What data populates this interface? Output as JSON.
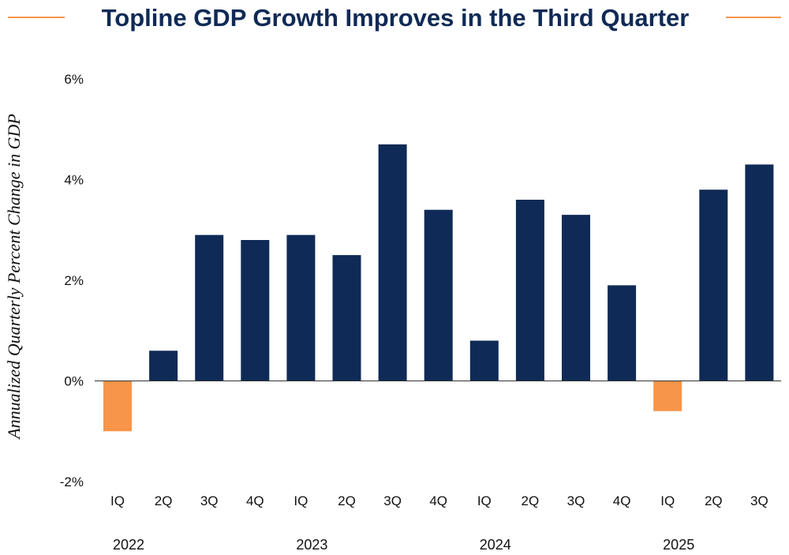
{
  "chart_data": {
    "type": "bar",
    "title": "Topline GDP Growth Improves in the Third Quarter",
    "ylabel": "Annualized Quarterly Percent Change in GDP",
    "xlabel": "",
    "ylim": [
      -2,
      6
    ],
    "yticks": [
      6,
      4,
      2,
      0,
      -2
    ],
    "ytick_labels": [
      "6%",
      "4%",
      "2%",
      "0%",
      "-2%"
    ],
    "categories": [
      "IQ",
      "2Q",
      "3Q",
      "4Q",
      "IQ",
      "2Q",
      "3Q",
      "4Q",
      "IQ",
      "2Q",
      "3Q",
      "4Q",
      "IQ",
      "2Q",
      "3Q"
    ],
    "values": [
      -1.0,
      0.6,
      2.9,
      2.8,
      2.9,
      2.5,
      4.7,
      3.4,
      0.8,
      3.6,
      3.3,
      1.9,
      -0.6,
      3.8,
      4.3
    ],
    "years": [
      {
        "label": "2022",
        "start": 0
      },
      {
        "label": "2023",
        "start": 4
      },
      {
        "label": "2024",
        "start": 8
      },
      {
        "label": "2025",
        "start": 12
      }
    ],
    "positive_color": "#0f2a56",
    "negative_color": "#f7954a",
    "accent_line_color": "#f7954a"
  }
}
